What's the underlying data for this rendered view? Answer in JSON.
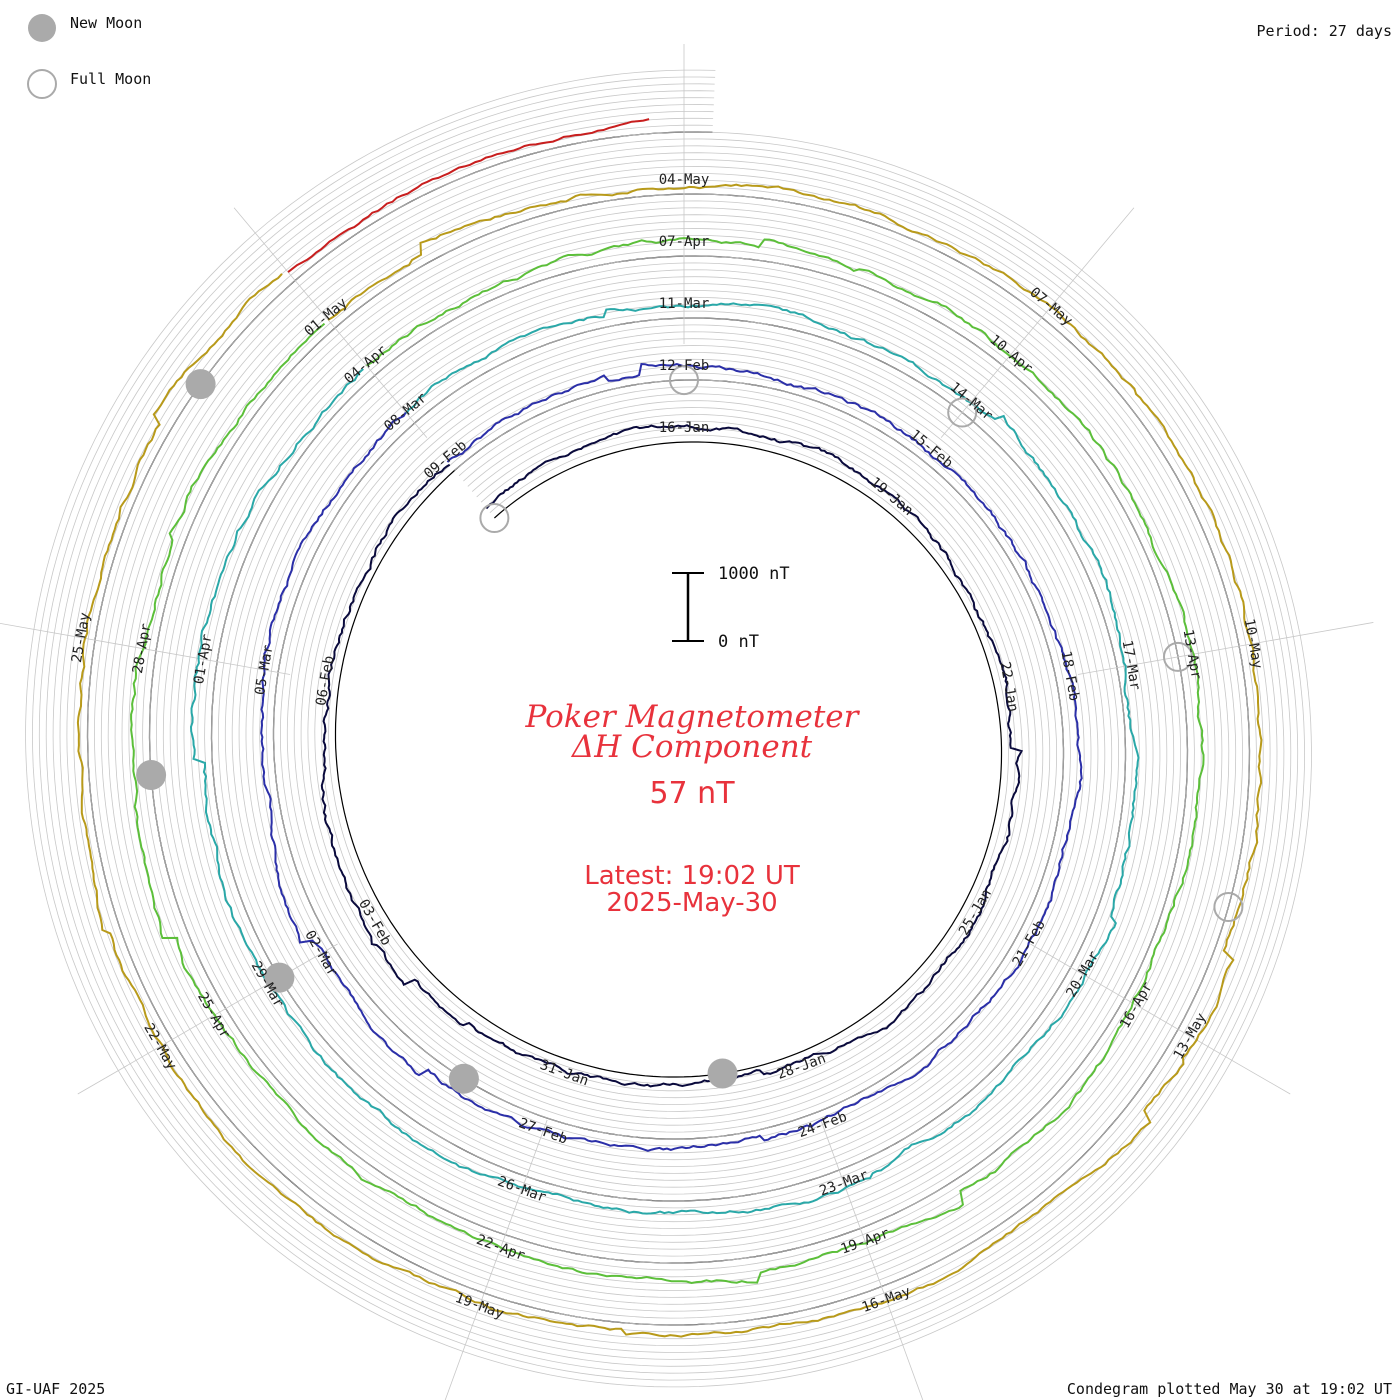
{
  "legend": {
    "new_moon_label": "New Moon",
    "full_moon_label": "Full Moon"
  },
  "period_label": "Period: 27 days",
  "footer": {
    "left": "GI-UAF 2025",
    "right": "Condegram plotted May 30 at 19:02 UT"
  },
  "center": {
    "title_line1": "Poker Magnetometer",
    "title_line2": "ΔH Component",
    "current_value": "57 nT",
    "latest_label": "Latest: 19:02 UT",
    "latest_date": "2025-May-30"
  },
  "scale_bar": {
    "top_label": "1000 nT",
    "bottom_label": "0 nT",
    "top_value": 1000,
    "bottom_value": 0
  },
  "colors": {
    "moon_new": "#aaaaaa",
    "moon_full_stroke": "#aaaaaa",
    "center_text": "#e8323c",
    "ring_grid": "#c8c8c8",
    "ring_base": "#000000"
  },
  "chart_data": {
    "type": "line",
    "period_days": 27,
    "units": "nT",
    "rotations": [
      {
        "start": "2025-01-13",
        "color": "#0a0a3c",
        "dates": [
          "16-Jan",
          "19-Jan",
          "22-Jan",
          "25-Jan",
          "28-Jan",
          "31-Jan",
          "03-Feb",
          "06-Feb",
          "09-Feb"
        ]
      },
      {
        "start": "2025-02-09",
        "color": "#2b2fa8",
        "dates": [
          "12-Feb",
          "15-Feb",
          "18-Feb",
          "21-Feb",
          "24-Feb",
          "27-Feb",
          "02-Mar",
          "05-Mar",
          "08-Mar"
        ]
      },
      {
        "start": "2025-03-08",
        "color": "#2aa8a8",
        "dates": [
          "11-Mar",
          "14-Mar",
          "17-Mar",
          "20-Mar",
          "23-Mar",
          "26-Mar",
          "29-Mar",
          "01-Apr",
          "04-Apr"
        ]
      },
      {
        "start": "2025-04-04",
        "color": "#5cbf3a",
        "dates": [
          "07-Apr",
          "10-Apr",
          "13-Apr",
          "16-Apr",
          "19-Apr",
          "22-Apr",
          "25-Apr",
          "28-Apr",
          "01-May"
        ]
      },
      {
        "start": "2025-05-01",
        "color": "#b89a1a",
        "dates": [
          "04-May",
          "07-May",
          "10-May",
          "13-May",
          "16-May",
          "19-May",
          "22-May",
          "25-May"
        ]
      },
      {
        "start": "2025-05-28",
        "color": "#c81e1e",
        "dates": []
      }
    ],
    "moon_phases": [
      {
        "type": "full",
        "date": "2025-01-13"
      },
      {
        "type": "new",
        "date": "2025-01-29"
      },
      {
        "type": "full",
        "date": "2025-02-12"
      },
      {
        "type": "new",
        "date": "2025-02-28"
      },
      {
        "type": "full",
        "date": "2025-03-14"
      },
      {
        "type": "new",
        "date": "2025-03-29"
      },
      {
        "type": "full",
        "date": "2025-04-13"
      },
      {
        "type": "new",
        "date": "2025-04-27"
      },
      {
        "type": "full",
        "date": "2025-05-12"
      },
      {
        "type": "new",
        "date": "2025-05-27"
      }
    ],
    "ylim": [
      0,
      1000
    ]
  }
}
